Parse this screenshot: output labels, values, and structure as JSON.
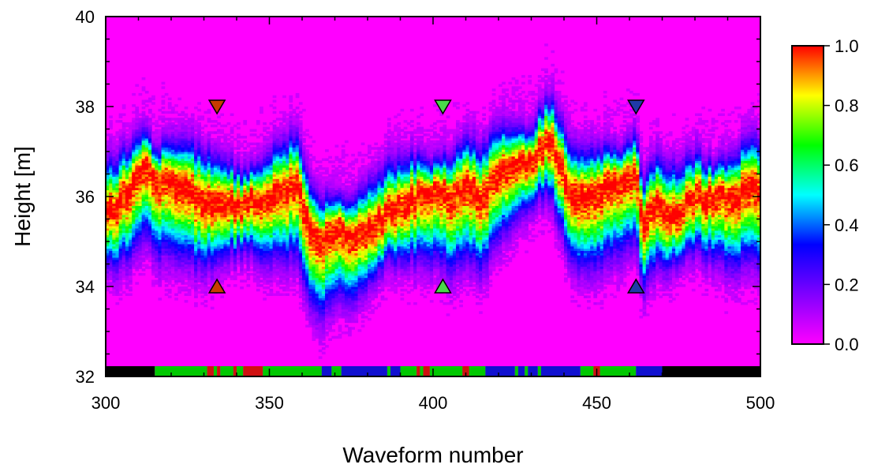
{
  "chart_data": {
    "type": "heatmap",
    "title": "",
    "xlabel": "Waveform number",
    "ylabel": "Height [m]",
    "xlim": [
      300,
      500
    ],
    "ylim": [
      32,
      40
    ],
    "x_ticks": [
      "300",
      "350",
      "400",
      "450",
      "500"
    ],
    "y_ticks": [
      "32",
      "34",
      "36",
      "38",
      "40"
    ],
    "colorbar": {
      "range": [
        0.0,
        1.0
      ],
      "tick_labels": [
        "0.0",
        "0.2",
        "0.4",
        "0.6",
        "0.8",
        "1.0"
      ],
      "colormap": [
        "#ff00ff",
        "#8000ff",
        "#0000ff",
        "#00ffff",
        "#00ff00",
        "#ffff00",
        "#ff0000"
      ]
    },
    "surface_peak_height": [
      {
        "x": 300,
        "y": 35.6
      },
      {
        "x": 305,
        "y": 35.9
      },
      {
        "x": 310,
        "y": 36.5
      },
      {
        "x": 313,
        "y": 36.8
      },
      {
        "x": 316,
        "y": 36.3
      },
      {
        "x": 320,
        "y": 36.4
      },
      {
        "x": 325,
        "y": 36.1
      },
      {
        "x": 330,
        "y": 35.9
      },
      {
        "x": 335,
        "y": 35.9
      },
      {
        "x": 340,
        "y": 35.8
      },
      {
        "x": 345,
        "y": 35.9
      },
      {
        "x": 350,
        "y": 36.0
      },
      {
        "x": 355,
        "y": 36.1
      },
      {
        "x": 358,
        "y": 36.3
      },
      {
        "x": 362,
        "y": 35.4
      },
      {
        "x": 366,
        "y": 35.0
      },
      {
        "x": 370,
        "y": 35.3
      },
      {
        "x": 375,
        "y": 35.2
      },
      {
        "x": 380,
        "y": 35.3
      },
      {
        "x": 385,
        "y": 35.5
      },
      {
        "x": 390,
        "y": 35.8
      },
      {
        "x": 395,
        "y": 36.0
      },
      {
        "x": 400,
        "y": 36.1
      },
      {
        "x": 405,
        "y": 36.0
      },
      {
        "x": 410,
        "y": 36.2
      },
      {
        "x": 415,
        "y": 36.0
      },
      {
        "x": 420,
        "y": 36.5
      },
      {
        "x": 425,
        "y": 36.7
      },
      {
        "x": 430,
        "y": 36.8
      },
      {
        "x": 435,
        "y": 37.3
      },
      {
        "x": 438,
        "y": 36.9
      },
      {
        "x": 442,
        "y": 36.0
      },
      {
        "x": 446,
        "y": 36.0
      },
      {
        "x": 450,
        "y": 36.1
      },
      {
        "x": 455,
        "y": 36.3
      },
      {
        "x": 460,
        "y": 36.4
      },
      {
        "x": 462,
        "y": 36.7
      },
      {
        "x": 464,
        "y": 35.3
      },
      {
        "x": 468,
        "y": 35.8
      },
      {
        "x": 472,
        "y": 35.5
      },
      {
        "x": 476,
        "y": 35.7
      },
      {
        "x": 480,
        "y": 36.0
      },
      {
        "x": 485,
        "y": 36.0
      },
      {
        "x": 490,
        "y": 36.0
      },
      {
        "x": 495,
        "y": 36.1
      },
      {
        "x": 500,
        "y": 36.2
      }
    ],
    "markers": [
      {
        "x": 334,
        "y": 38,
        "shape": "triangle-down",
        "color": "#c83c00"
      },
      {
        "x": 334,
        "y": 34,
        "shape": "triangle-up",
        "color": "#c83c00"
      },
      {
        "x": 403,
        "y": 38,
        "shape": "triangle-down",
        "color": "#4ad84a"
      },
      {
        "x": 403,
        "y": 34,
        "shape": "triangle-up",
        "color": "#4ad84a"
      },
      {
        "x": 462,
        "y": 38,
        "shape": "triangle-down",
        "color": "#1f3aa8"
      },
      {
        "x": 462,
        "y": 34,
        "shape": "triangle-up",
        "color": "#1f3aa8"
      }
    ],
    "classification_bar": [
      {
        "x0": 300,
        "x1": 315,
        "color": "#000000"
      },
      {
        "x0": 315,
        "x1": 331,
        "color": "#00c800"
      },
      {
        "x0": 331,
        "x1": 333,
        "color": "#d01010"
      },
      {
        "x0": 333,
        "x1": 334,
        "color": "#00c800"
      },
      {
        "x0": 334,
        "x1": 335,
        "color": "#d01010"
      },
      {
        "x0": 335,
        "x1": 339,
        "color": "#00c800"
      },
      {
        "x0": 339,
        "x1": 340,
        "color": "#d01010"
      },
      {
        "x0": 340,
        "x1": 342,
        "color": "#00c800"
      },
      {
        "x0": 342,
        "x1": 348,
        "color": "#d01010"
      },
      {
        "x0": 348,
        "x1": 366,
        "color": "#00c800"
      },
      {
        "x0": 366,
        "x1": 369,
        "color": "#1010d0"
      },
      {
        "x0": 369,
        "x1": 372,
        "color": "#00c800"
      },
      {
        "x0": 372,
        "x1": 386,
        "color": "#1010d0"
      },
      {
        "x0": 386,
        "x1": 387,
        "color": "#00c800"
      },
      {
        "x0": 387,
        "x1": 390,
        "color": "#1010d0"
      },
      {
        "x0": 390,
        "x1": 395,
        "color": "#00c800"
      },
      {
        "x0": 395,
        "x1": 396,
        "color": "#d01010"
      },
      {
        "x0": 396,
        "x1": 397,
        "color": "#00c800"
      },
      {
        "x0": 397,
        "x1": 399,
        "color": "#d01010"
      },
      {
        "x0": 399,
        "x1": 409,
        "color": "#00c800"
      },
      {
        "x0": 409,
        "x1": 411,
        "color": "#d01010"
      },
      {
        "x0": 411,
        "x1": 416,
        "color": "#00c800"
      },
      {
        "x0": 416,
        "x1": 425,
        "color": "#1010d0"
      },
      {
        "x0": 425,
        "x1": 426,
        "color": "#00c800"
      },
      {
        "x0": 426,
        "x1": 428,
        "color": "#1010d0"
      },
      {
        "x0": 428,
        "x1": 429,
        "color": "#00c800"
      },
      {
        "x0": 429,
        "x1": 432,
        "color": "#1010d0"
      },
      {
        "x0": 432,
        "x1": 433,
        "color": "#00c800"
      },
      {
        "x0": 433,
        "x1": 445,
        "color": "#1010d0"
      },
      {
        "x0": 445,
        "x1": 449,
        "color": "#00c800"
      },
      {
        "x0": 449,
        "x1": 451,
        "color": "#d01010"
      },
      {
        "x0": 451,
        "x1": 462,
        "color": "#00c800"
      },
      {
        "x0": 462,
        "x1": 470,
        "color": "#1010d0"
      },
      {
        "x0": 470,
        "x1": 500,
        "color": "#000000"
      }
    ]
  }
}
